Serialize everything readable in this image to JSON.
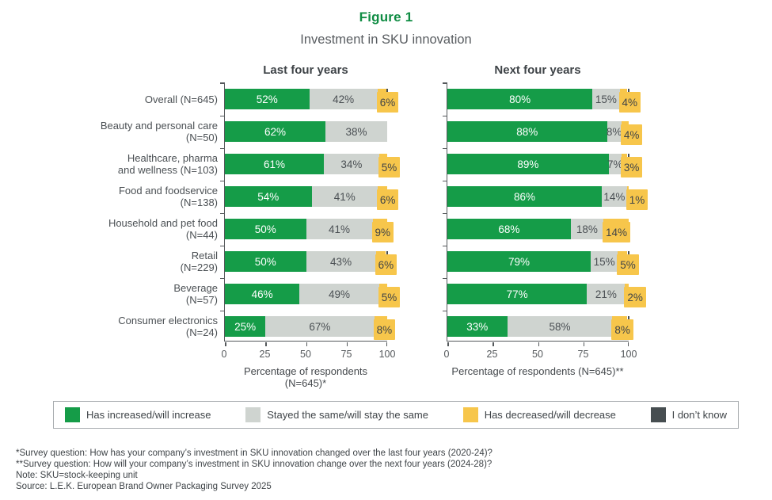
{
  "title": "Figure 1",
  "subtitle": "Investment in SKU innovation",
  "colors": {
    "increase": "#159C48",
    "same": "#CFD4D0",
    "decrease": "#F7C64B",
    "idk": "#474E51",
    "title_green": "#0F8C43"
  },
  "charts": [
    {
      "key": "last",
      "header": "Last four years",
      "axis_label": "Percentage of respondents (N=645)*"
    },
    {
      "key": "next",
      "header": "Next four years",
      "axis_label": "Percentage of respondents (N=645)**"
    }
  ],
  "axis_ticks": [
    "0",
    "25",
    "50",
    "75",
    "100"
  ],
  "legend": [
    {
      "label": "Has increased/will increase",
      "color": "#159C48"
    },
    {
      "label": "Stayed the same/will stay the same",
      "color": "#CFD4D0"
    },
    {
      "label": "Has decreased/will decrease",
      "color": "#F7C64B"
    },
    {
      "label": "I don’t know",
      "color": "#474E51"
    }
  ],
  "rows": [
    {
      "label_lines": [
        "Overall (N=645)"
      ],
      "last": {
        "increase": 52,
        "same": 42,
        "decrease": 6,
        "idk_sliver": true
      },
      "next": {
        "increase": 80,
        "same": 15,
        "decrease": 4,
        "idk_sliver": true
      }
    },
    {
      "label_lines": [
        "Beauty and personal care",
        "(N=50)"
      ],
      "last": {
        "increase": 62,
        "same": 38,
        "decrease": 0
      },
      "next": {
        "increase": 88,
        "same": 8,
        "decrease": 4
      }
    },
    {
      "label_lines": [
        "Healthcare, pharma",
        "and wellness (N=103)"
      ],
      "last": {
        "increase": 61,
        "same": 34,
        "decrease": 5
      },
      "next": {
        "increase": 89,
        "same": 7,
        "decrease": 3,
        "idk_sliver": true
      }
    },
    {
      "label_lines": [
        "Food and foodservice",
        "(N=138)"
      ],
      "last": {
        "increase": 54,
        "same": 41,
        "decrease": 6
      },
      "next": {
        "increase": 86,
        "same": 14,
        "decrease": 1
      }
    },
    {
      "label_lines": [
        "Household and pet food",
        "(N=44)"
      ],
      "last": {
        "increase": 50,
        "same": 41,
        "decrease": 9
      },
      "next": {
        "increase": 68,
        "same": 18,
        "decrease": 14
      }
    },
    {
      "label_lines": [
        "Retail",
        "(N=229)"
      ],
      "last": {
        "increase": 50,
        "same": 43,
        "decrease": 6,
        "idk_sliver": true
      },
      "next": {
        "increase": 79,
        "same": 15,
        "decrease": 5,
        "idk_sliver": true
      }
    },
    {
      "label_lines": [
        "Beverage",
        "(N=57)"
      ],
      "last": {
        "increase": 46,
        "same": 49,
        "decrease": 5
      },
      "next": {
        "increase": 77,
        "same": 21,
        "decrease": 2
      }
    },
    {
      "label_lines": [
        "Consumer electronics",
        "(N=24)"
      ],
      "last": {
        "increase": 25,
        "same": 67,
        "decrease": 8
      },
      "next": {
        "increase": 33,
        "same": 58,
        "decrease": 8,
        "idk_sliver": true
      }
    }
  ],
  "footnotes": [
    "*Survey question: How has your company’s investment in SKU innovation changed over the last four years (2020-24)?",
    "**Survey question: How will your company’s investment in SKU innovation change over the next four years (2024-28)?",
    "Note: SKU=stock-keeping unit",
    "Source: L.E.K. European Brand Owner Packaging Survey 2025"
  ],
  "chart_data": [
    {
      "type": "bar",
      "orientation": "horizontal",
      "stacked": true,
      "title": "Last four years",
      "categories": [
        "Overall (N=645)",
        "Beauty and personal care (N=50)",
        "Healthcare, pharma and wellness (N=103)",
        "Food and foodservice (N=138)",
        "Household and pet food (N=44)",
        "Retail (N=229)",
        "Beverage (N=57)",
        "Consumer electronics (N=24)"
      ],
      "series": [
        {
          "name": "Has increased/will increase",
          "values": [
            52,
            62,
            61,
            54,
            50,
            50,
            46,
            25
          ]
        },
        {
          "name": "Stayed the same/will stay the same",
          "values": [
            42,
            38,
            34,
            41,
            41,
            43,
            49,
            67
          ]
        },
        {
          "name": "Has decreased/will decrease",
          "values": [
            6,
            0,
            5,
            6,
            9,
            6,
            5,
            8
          ]
        }
      ],
      "xlabel": "Percentage of respondents (N=645)*",
      "xlim": [
        0,
        100
      ],
      "x_ticks": [
        0,
        25,
        50,
        75,
        100
      ],
      "grid": false,
      "legend_position": "bottom"
    },
    {
      "type": "bar",
      "orientation": "horizontal",
      "stacked": true,
      "title": "Next four years",
      "categories": [
        "Overall (N=645)",
        "Beauty and personal care (N=50)",
        "Healthcare, pharma and wellness (N=103)",
        "Food and foodservice (N=138)",
        "Household and pet food (N=44)",
        "Retail (N=229)",
        "Beverage (N=57)",
        "Consumer electronics (N=24)"
      ],
      "series": [
        {
          "name": "Has increased/will increase",
          "values": [
            80,
            88,
            89,
            86,
            68,
            79,
            77,
            33
          ]
        },
        {
          "name": "Stayed the same/will stay the same",
          "values": [
            15,
            8,
            7,
            14,
            18,
            15,
            21,
            58
          ]
        },
        {
          "name": "Has decreased/will decrease",
          "values": [
            4,
            4,
            3,
            1,
            14,
            5,
            2,
            8
          ]
        }
      ],
      "xlabel": "Percentage of respondents (N=645)**",
      "xlim": [
        0,
        100
      ],
      "x_ticks": [
        0,
        25,
        50,
        75,
        100
      ],
      "grid": false,
      "legend_position": "bottom"
    }
  ]
}
